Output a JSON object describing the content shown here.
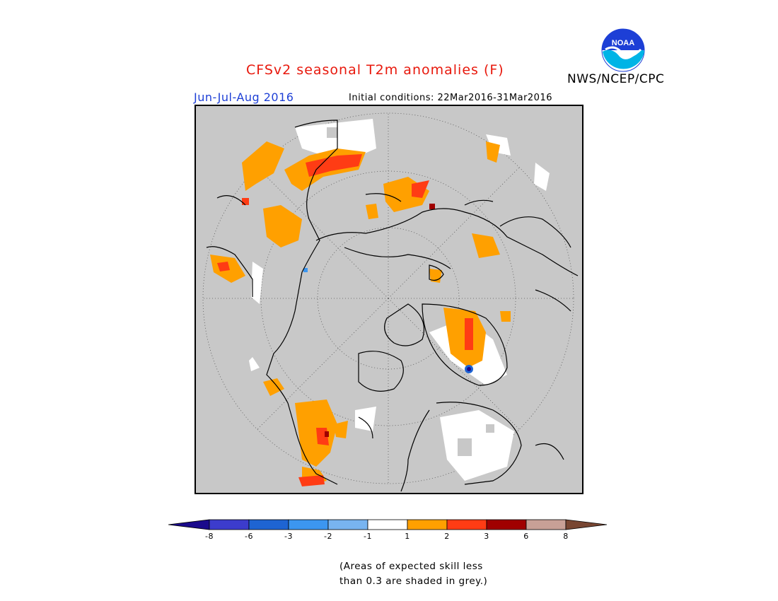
{
  "header": {
    "title": "CFSv2 seasonal T2m anomalies (F)",
    "season": "Jun-Jul-Aug 2016",
    "initial_conditions": "Initial conditions: 22Mar2016-31Mar2016",
    "agency": "NWS/NCEP/CPC",
    "logo_text": "NOAA"
  },
  "map": {
    "projection": "north polar stereographic",
    "background_color": "#c8c8c8",
    "land_outline_color": "#000000"
  },
  "legend": {
    "colors": [
      "#1a0a8c",
      "#3c3ccc",
      "#1e64d2",
      "#3c96f0",
      "#78b4f0",
      "#ffffff",
      "#ffa000",
      "#ff3c14",
      "#a00000",
      "#c8a096",
      "#784632"
    ],
    "tick_labels": [
      "-8",
      "-6",
      "-3",
      "-2",
      "-1",
      "1",
      "2",
      "3",
      "6",
      "8"
    ]
  },
  "footnote": {
    "line1": "(Areas of expected skill less",
    "line2": "than 0.3 are shaded in grey.)"
  }
}
